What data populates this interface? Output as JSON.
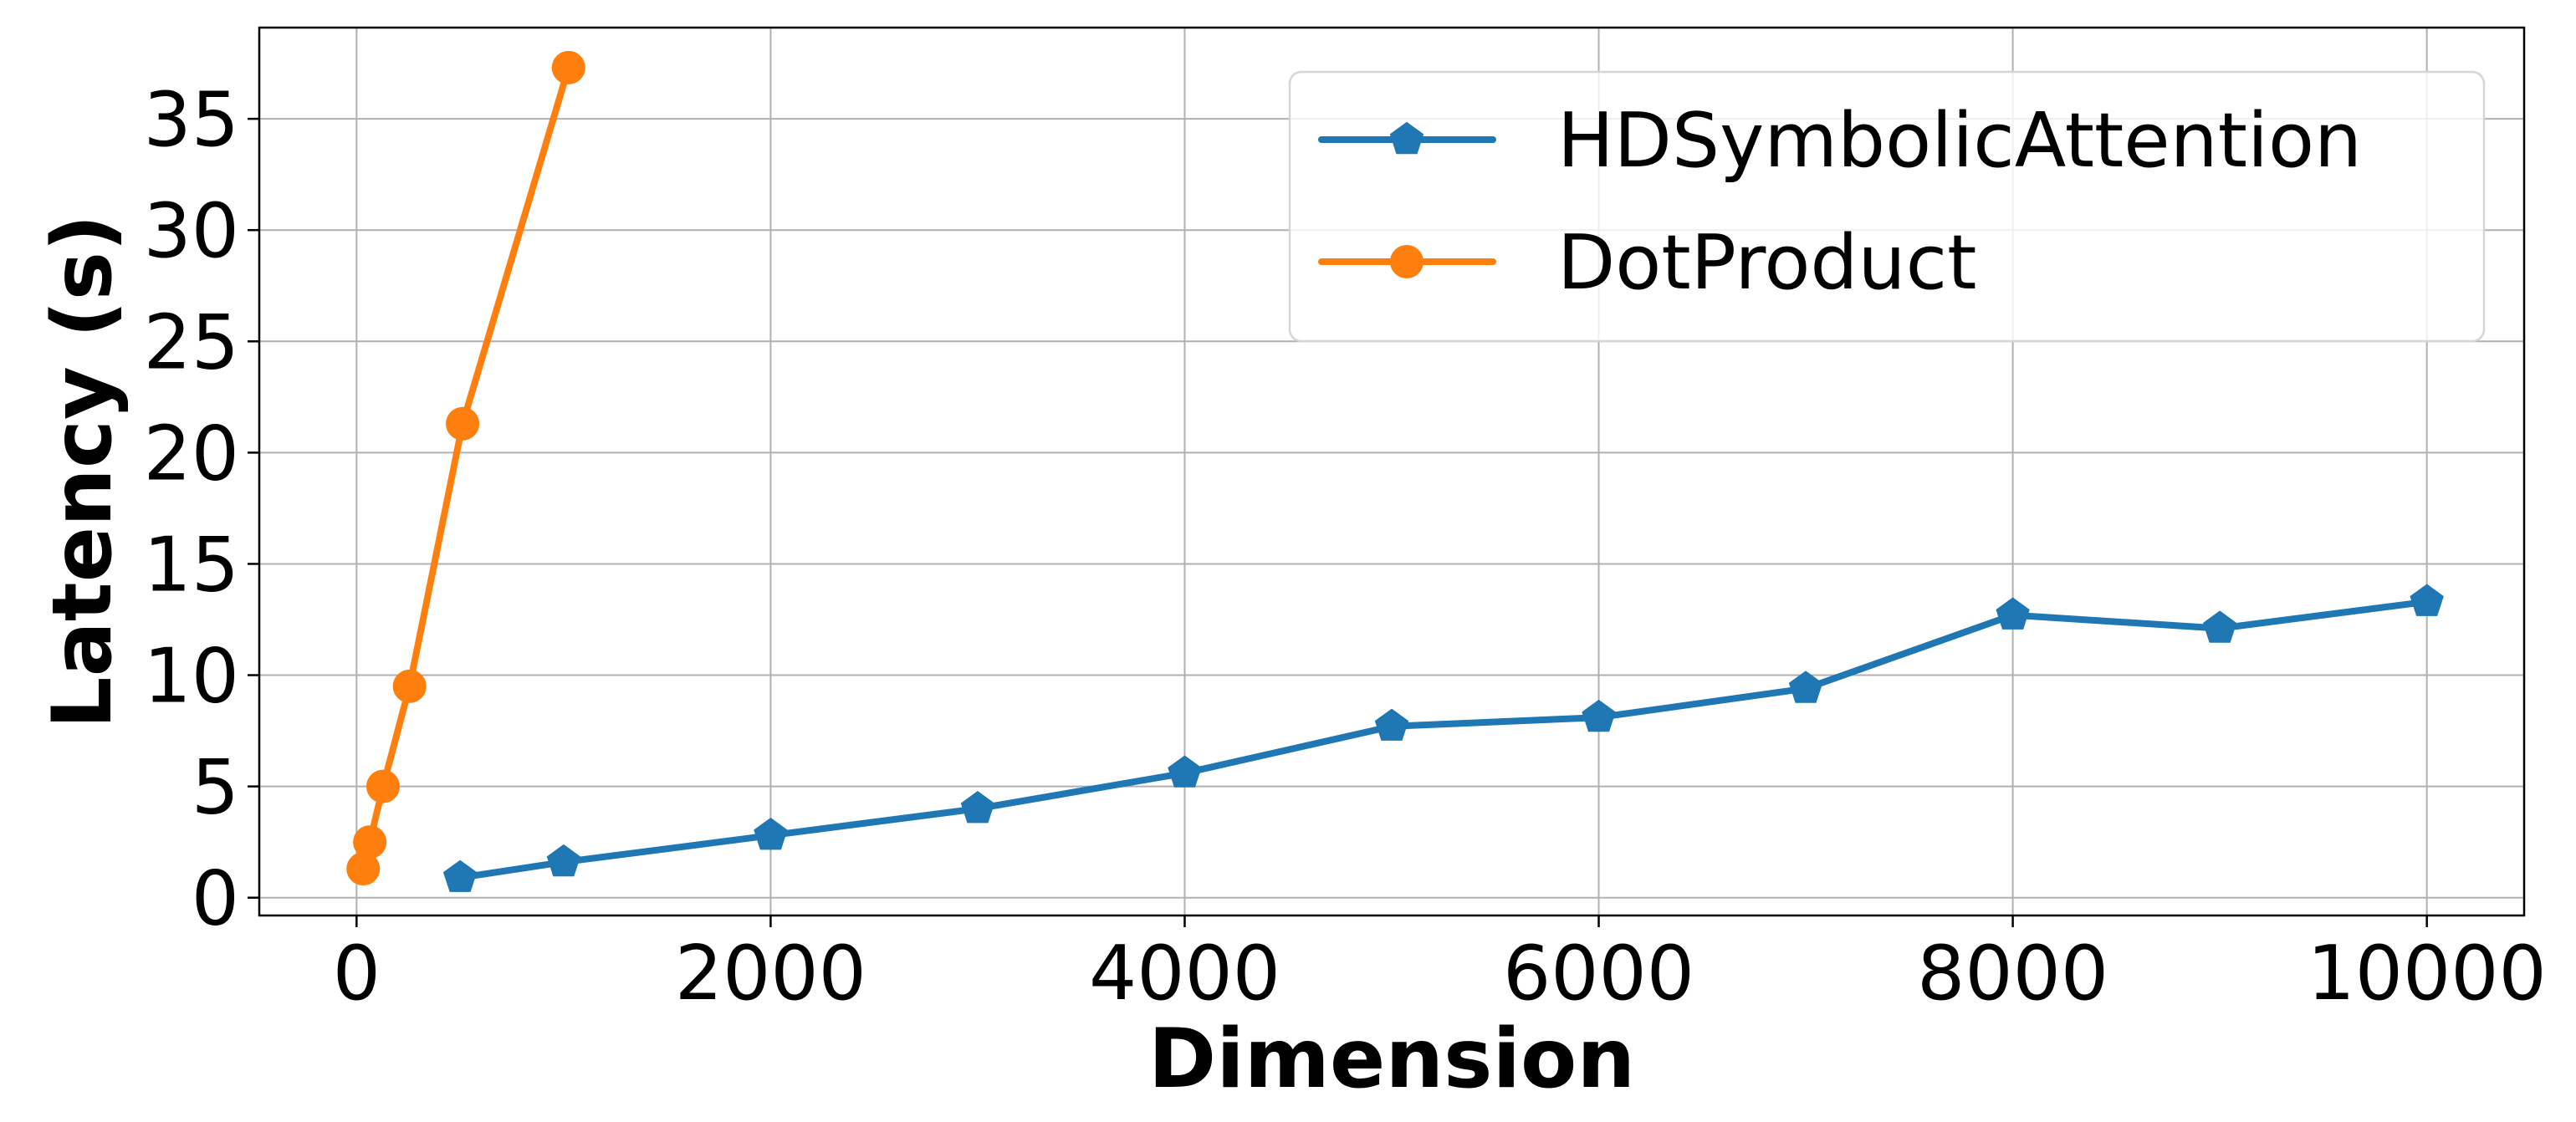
{
  "chart_data": {
    "type": "line",
    "title": "",
    "xlabel": "Dimension",
    "ylabel": "Latency (s)",
    "xlim": [
      -470,
      10470
    ],
    "ylim": [
      -0.8,
      39.1
    ],
    "x_ticks": [
      0,
      2000,
      4000,
      6000,
      8000,
      10000
    ],
    "x_tick_labels": [
      "0",
      "2000",
      "4000",
      "6000",
      "8000",
      "10000"
    ],
    "y_ticks": [
      0,
      5,
      10,
      15,
      20,
      25,
      30,
      35
    ],
    "y_tick_labels": [
      "0",
      "5",
      "10",
      "15",
      "20",
      "25",
      "30",
      "35"
    ],
    "grid": true,
    "legend_position": "top-right",
    "series": [
      {
        "name": "HDSymbolicAttention",
        "color": "#1f77b4",
        "marker": "pentagon",
        "x": [
          500,
          1000,
          2000,
          3000,
          4000,
          5000,
          6000,
          7000,
          8000,
          9000,
          10000
        ],
        "y": [
          0.9,
          1.6,
          2.8,
          4.0,
          5.6,
          7.7,
          8.1,
          9.4,
          12.7,
          12.1,
          13.3
        ]
      },
      {
        "name": "DotProduct",
        "color": "#ff7f0e",
        "marker": "circle",
        "x": [
          32,
          64,
          128,
          256,
          512,
          1024
        ],
        "y": [
          1.3,
          2.5,
          5.0,
          9.5,
          21.3,
          37.3
        ]
      }
    ]
  }
}
